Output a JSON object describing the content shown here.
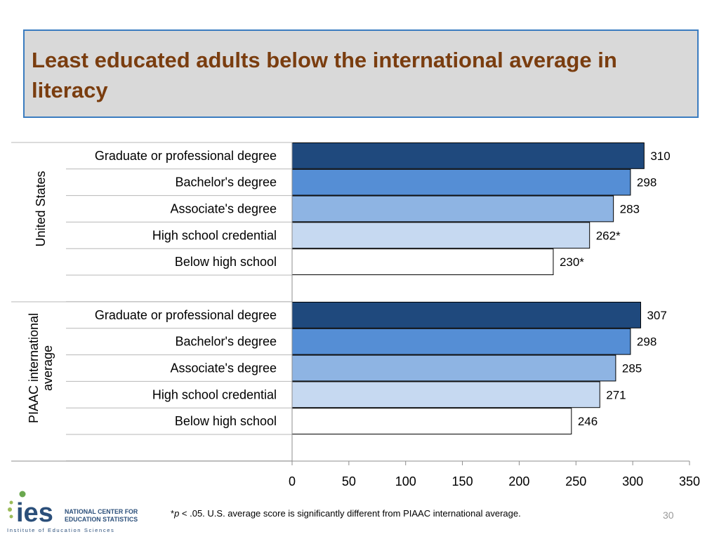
{
  "title": "Least educated adults below the international average in literacy",
  "footnote": {
    "star": "*",
    "p": "p",
    "rest": " < .05. U.S. average score is significantly different from PIAAC international average."
  },
  "page_number": "30",
  "logo": {
    "mark": "ies",
    "line1": "NATIONAL CENTER FOR",
    "line2": "EDUCATION STATISTICS",
    "line3": "Institute of Education Sciences"
  },
  "colors": {
    "graduate": "#1f497d",
    "bachelor": "#558ed5",
    "associate": "#8eb4e3",
    "highschool": "#c6d9f1",
    "below": "#ffffff",
    "title": "#7a3d0f",
    "title_border": "#3b7cc0"
  },
  "chart_data": {
    "type": "bar",
    "orientation": "horizontal",
    "xlim": [
      0,
      350
    ],
    "xticks": [
      "0",
      "50",
      "100",
      "150",
      "200",
      "250",
      "300",
      "350"
    ],
    "groups": [
      {
        "name": "United States",
        "bars": [
          {
            "label": "Graduate or professional degree",
            "value": 310,
            "display": "310",
            "level": "graduate"
          },
          {
            "label": "Bachelor's degree",
            "value": 298,
            "display": "298",
            "level": "bachelor"
          },
          {
            "label": "Associate's degree",
            "value": 283,
            "display": "283",
            "level": "associate"
          },
          {
            "label": "High school credential",
            "value": 262,
            "display": "262*",
            "level": "highschool"
          },
          {
            "label": "Below high school",
            "value": 230,
            "display": "230*",
            "level": "below"
          }
        ]
      },
      {
        "name": "PIAAC international average",
        "name_lines": [
          "PIAAC international",
          "average"
        ],
        "bars": [
          {
            "label": "Graduate or professional degree",
            "value": 307,
            "display": "307",
            "level": "graduate"
          },
          {
            "label": "Bachelor's degree",
            "value": 298,
            "display": "298",
            "level": "bachelor"
          },
          {
            "label": "Associate's degree",
            "value": 285,
            "display": "285",
            "level": "associate"
          },
          {
            "label": "High school credential",
            "value": 271,
            "display": "271",
            "level": "highschool"
          },
          {
            "label": "Below high school",
            "value": 246,
            "display": "246",
            "level": "below"
          }
        ]
      }
    ]
  }
}
